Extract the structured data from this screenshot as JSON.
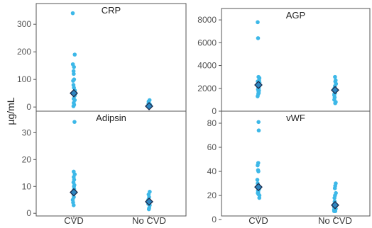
{
  "figure": {
    "shared_ylabel": "µg/mL",
    "x_categories": [
      "CVD",
      "No CVD"
    ]
  },
  "colors": {
    "point": "#3DB8E8",
    "mean_marker_fill": "#2E86C1",
    "mean_marker_stroke": "#1B2A4A",
    "frame": "#555555"
  },
  "chart_data": [
    {
      "type": "scatter",
      "title": "CRP",
      "ylabel": "µg/mL",
      "ylim": [
        -15,
        375
      ],
      "yticks": [
        0,
        100,
        200,
        300
      ],
      "categories": [
        "CVD",
        "No CVD"
      ],
      "series": [
        {
          "category": "CVD",
          "values": [
            340,
            190,
            155,
            145,
            130,
            120,
            100,
            95,
            80,
            70,
            60,
            55,
            50,
            45,
            40,
            30,
            25,
            15,
            8,
            3
          ],
          "mean": 50
        },
        {
          "category": "No CVD",
          "values": [
            25,
            20,
            15,
            12,
            10,
            8,
            5,
            3,
            2
          ],
          "mean": 3
        }
      ]
    },
    {
      "type": "scatter",
      "title": "AGP",
      "ylim": [
        0,
        9000
      ],
      "yticks": [
        0,
        2000,
        4000,
        6000,
        8000
      ],
      "categories": [
        "CVD",
        "No CVD"
      ],
      "series": [
        {
          "category": "CVD",
          "values": [
            7800,
            6400,
            3000,
            2900,
            2700,
            2600,
            2500,
            2400,
            2300,
            2200,
            2100,
            2000,
            1900,
            1800,
            1700,
            1600,
            1500,
            1300
          ],
          "mean": 2300
        },
        {
          "category": "No CVD",
          "values": [
            3000,
            2700,
            2600,
            2400,
            2200,
            2000,
            1900,
            1800,
            1700,
            1600,
            1500,
            1400,
            1200,
            1000,
            800,
            700
          ],
          "mean": 1850
        }
      ]
    },
    {
      "type": "scatter",
      "title": "Adipsin",
      "ylabel": "µg/mL",
      "ylim": [
        -1,
        38
      ],
      "yticks": [
        0,
        10,
        20,
        30
      ],
      "categories": [
        "CVD",
        "No CVD"
      ],
      "series": [
        {
          "category": "CVD",
          "values": [
            34,
            15.5,
            14.5,
            13.5,
            12.5,
            11.5,
            10.5,
            10,
            9,
            8.5,
            8,
            7,
            6,
            5,
            4,
            3
          ],
          "mean": 7.8
        },
        {
          "category": "No CVD",
          "values": [
            8,
            7,
            6,
            5,
            4.5,
            4,
            3.5,
            3,
            2,
            1.5
          ],
          "mean": 4.3
        }
      ]
    },
    {
      "type": "scatter",
      "title": "vWF",
      "ylim": [
        3,
        90
      ],
      "yticks": [
        0,
        20,
        40,
        60,
        80
      ],
      "categories": [
        "CVD",
        "No CVD"
      ],
      "series": [
        {
          "category": "CVD",
          "values": [
            81,
            74,
            47,
            45,
            41,
            40,
            33,
            30,
            28,
            26,
            25,
            24,
            23,
            22,
            21,
            20,
            18
          ],
          "mean": 27
        },
        {
          "category": "No CVD",
          "values": [
            30,
            28,
            26,
            22,
            20,
            18,
            15,
            13,
            12,
            10,
            9,
            8,
            8,
            7,
            7
          ],
          "mean": 12
        }
      ]
    }
  ]
}
